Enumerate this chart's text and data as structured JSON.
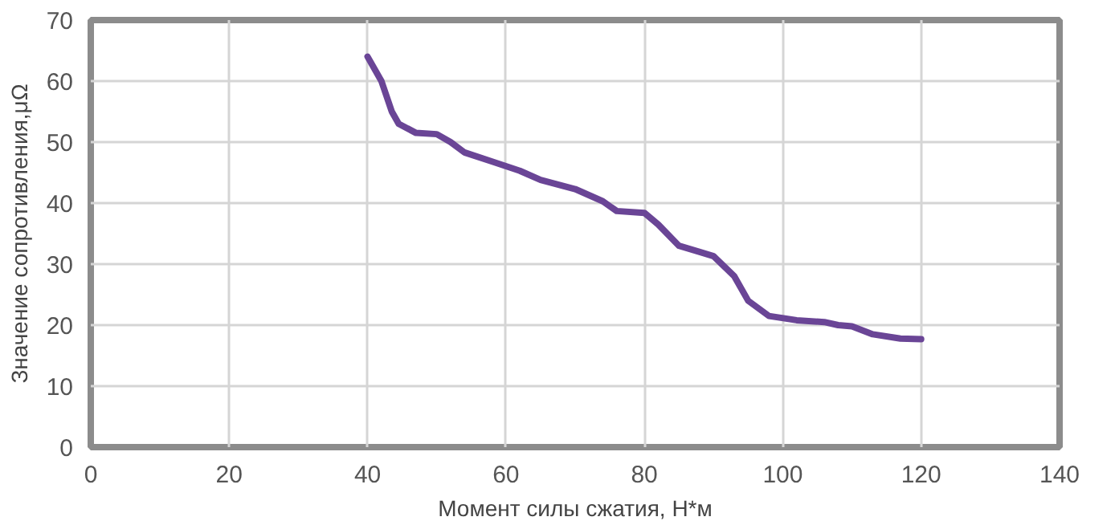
{
  "chart_data": {
    "type": "line",
    "xlabel": "Момент силы сжатия, Н*м",
    "ylabel": "Значение сопротивления,μΩ",
    "xlim": [
      0,
      140
    ],
    "ylim": [
      0,
      70
    ],
    "xticks": [
      0,
      20,
      40,
      60,
      80,
      100,
      120,
      140
    ],
    "yticks": [
      0,
      10,
      20,
      30,
      40,
      50,
      60,
      70
    ],
    "grid": true,
    "series": [
      {
        "color": "#6a4596",
        "x": [
          40,
          42,
          43.5,
          44.5,
          47,
          50,
          52,
          54,
          58,
          62,
          65,
          70,
          74,
          76,
          80,
          82,
          85,
          88,
          90,
          93,
          95,
          98,
          102,
          106,
          108,
          110,
          113,
          117,
          120
        ],
        "values": [
          64,
          60,
          55,
          53,
          51.5,
          51.3,
          50,
          48.3,
          46.8,
          45.3,
          43.8,
          42.3,
          40.3,
          38.7,
          38.4,
          36.5,
          33,
          32,
          31.3,
          28,
          24,
          21.5,
          20.8,
          20.5,
          20,
          19.8,
          18.5,
          17.8,
          17.7
        ]
      }
    ]
  }
}
